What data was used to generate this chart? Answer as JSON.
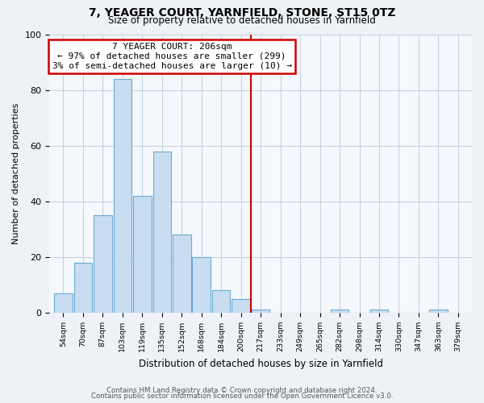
{
  "title": "7, YEAGER COURT, YARNFIELD, STONE, ST15 0TZ",
  "subtitle": "Size of property relative to detached houses in Yarnfield",
  "xlabel": "Distribution of detached houses by size in Yarnfield",
  "ylabel": "Number of detached properties",
  "bar_color": "#c8ddf0",
  "bar_edge_color": "#6aaad4",
  "bin_labels": [
    "54sqm",
    "70sqm",
    "87sqm",
    "103sqm",
    "119sqm",
    "135sqm",
    "152sqm",
    "168sqm",
    "184sqm",
    "200sqm",
    "217sqm",
    "233sqm",
    "249sqm",
    "265sqm",
    "282sqm",
    "298sqm",
    "314sqm",
    "330sqm",
    "347sqm",
    "363sqm",
    "379sqm"
  ],
  "bar_heights": [
    7,
    18,
    35,
    84,
    42,
    58,
    28,
    20,
    8,
    5,
    1,
    0,
    0,
    0,
    1,
    0,
    1,
    0,
    0,
    1,
    0
  ],
  "vline_x": 9.5,
  "vline_color": "#cc0000",
  "annotation_title": "7 YEAGER COURT: 206sqm",
  "annotation_line1": "← 97% of detached houses are smaller (299)",
  "annotation_line2": "3% of semi-detached houses are larger (10) →",
  "annotation_box_color": "#ffffff",
  "annotation_box_edge": "#cc0000",
  "ylim": [
    0,
    100
  ],
  "yticks": [
    0,
    20,
    40,
    60,
    80,
    100
  ],
  "footer1": "Contains HM Land Registry data © Crown copyright and database right 2024.",
  "footer2": "Contains public sector information licensed under the Open Government Licence v3.0.",
  "bg_color": "#eef2f7",
  "plot_bg_color": "#f5f8fc",
  "grid_color": "#c8d4e0"
}
